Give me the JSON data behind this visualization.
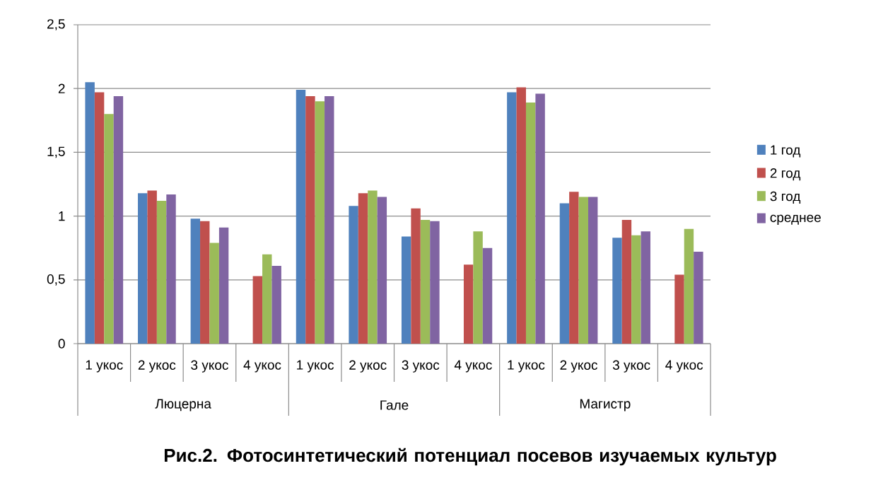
{
  "chart_data": {
    "type": "bar",
    "title": "Рис.2. Фотосинтетический потенциал посевов изучаемых культур",
    "categories": [
      "1 укос",
      "2 укос",
      "3 укос",
      "4 укос",
      "1 укос",
      "2 укос",
      "3 укос",
      "4 укос",
      "1 укос",
      "2 укос",
      "3 укос",
      "4 укос"
    ],
    "annotations": [
      "Люцерна",
      "Гале",
      "Магистр"
    ],
    "series": [
      {
        "name": "1 год",
        "color": "#4f81bd",
        "values": [
          2.05,
          1.18,
          0.98,
          null,
          1.99,
          1.08,
          0.84,
          null,
          1.97,
          1.1,
          0.83,
          null
        ]
      },
      {
        "name": "2 год",
        "color": "#c0504d",
        "values": [
          1.97,
          1.2,
          0.96,
          0.53,
          1.94,
          1.18,
          1.06,
          0.62,
          2.01,
          1.19,
          0.97,
          0.54
        ]
      },
      {
        "name": "3 год",
        "color": "#9bbb59",
        "values": [
          1.8,
          1.12,
          0.79,
          0.7,
          1.9,
          1.2,
          0.97,
          0.88,
          1.89,
          1.15,
          0.85,
          0.9
        ]
      },
      {
        "name": "среднее",
        "color": "#8064a2",
        "values": [
          1.94,
          1.17,
          0.91,
          0.61,
          1.94,
          1.15,
          0.96,
          0.75,
          1.96,
          1.15,
          0.88,
          0.72
        ]
      }
    ],
    "ylim": [
      0,
      2.5
    ],
    "yticks": [
      0,
      {
        "value": 0.5,
        "label": "0,5"
      },
      1,
      {
        "value": 1.5,
        "label": "1,5"
      },
      2,
      {
        "value": 2.5,
        "label": "2,5"
      }
    ],
    "grid": "y",
    "legend": "right"
  }
}
